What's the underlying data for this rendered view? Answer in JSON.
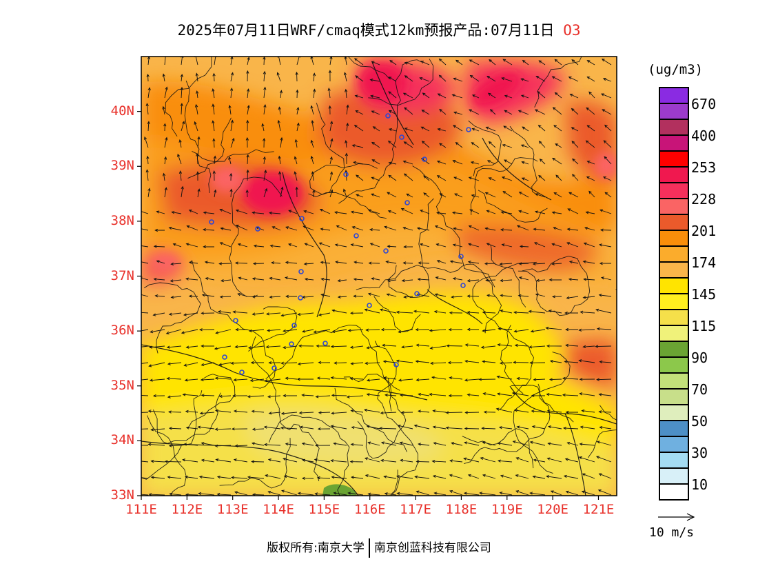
{
  "title": {
    "main": "2025年07月11日WRF/cmaq模式12km预报产品:07月11日",
    "species": "O3"
  },
  "axes": {
    "y_ticks": [
      "40N",
      "39N",
      "38N",
      "37N",
      "36N",
      "35N",
      "34N",
      "33N"
    ],
    "x_ticks": [
      "111E",
      "112E",
      "113E",
      "114E",
      "115E",
      "116E",
      "117E",
      "118E",
      "119E",
      "120E",
      "121E"
    ],
    "lat_range": [
      33,
      41
    ],
    "lon_range": [
      111,
      121.4
    ]
  },
  "legend": {
    "unit": "(ug/m3)",
    "colors": [
      "#8a2be2",
      "#9c3bcc",
      "#b2305e",
      "#c81478",
      "#ff0000",
      "#f0184f",
      "#f5305c",
      "#fa6464",
      "#eb5a2b",
      "#f98e0a",
      "#fbac2c",
      "#f9b54a",
      "#ffe400",
      "#ffef1f",
      "#f5e04a",
      "#f0f27a",
      "#6aa433",
      "#8cc84b",
      "#c3e17a",
      "#c8df8a",
      "#dfeebd",
      "#4d8fc6",
      "#6fb0e0",
      "#a4dcf3",
      "#d8f0f8",
      "#ffffff"
    ],
    "labels": [
      "670",
      "400",
      "253",
      "228",
      "201",
      "174",
      "145",
      "115",
      "90",
      "70",
      "50",
      "30",
      "10"
    ]
  },
  "vector_reference": {
    "label": "10 m/s"
  },
  "credit": {
    "left": "版权所有:南京大学",
    "right": "南京创蓝科技有限公司"
  },
  "station_count": 25
}
